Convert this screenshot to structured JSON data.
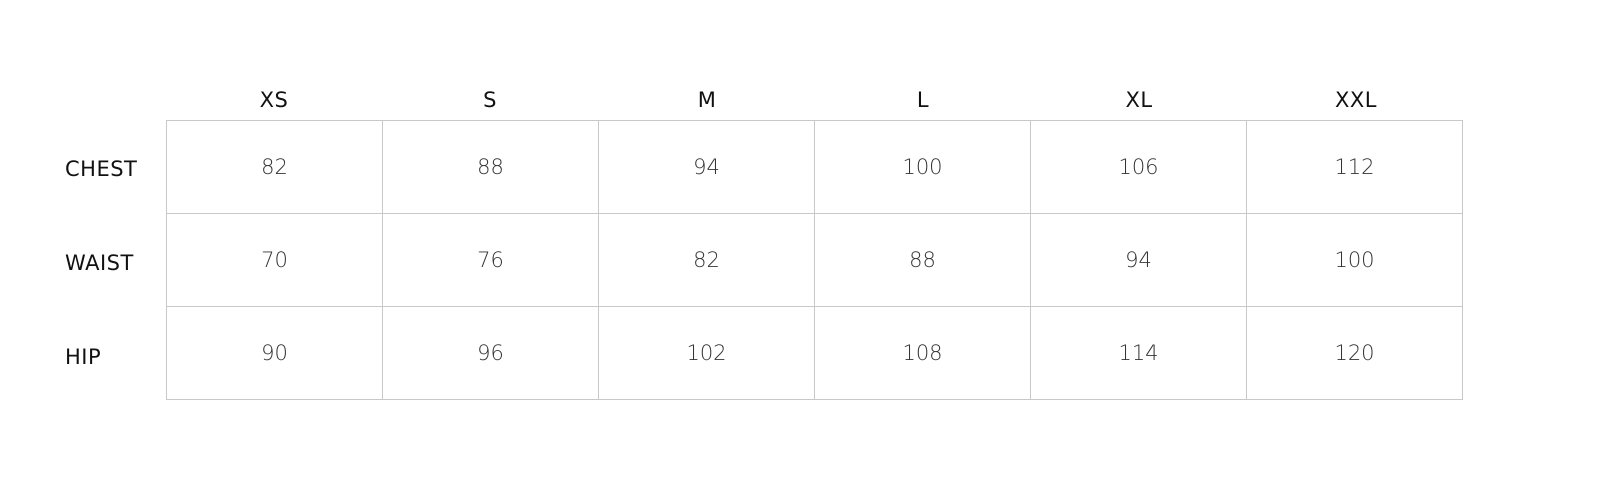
{
  "sizes": [
    "XS",
    "S",
    "M",
    "L",
    "XL",
    "XXL"
  ],
  "rows": [
    {
      "label": "CHEST",
      "values": [
        "82",
        "88",
        "94",
        "100",
        "106",
        "112"
      ]
    },
    {
      "label": "WAIST",
      "values": [
        "70",
        "76",
        "82",
        "88",
        "94",
        "100"
      ]
    },
    {
      "label": "HIP",
      "values": [
        "90",
        "96",
        "102",
        "108",
        "114",
        "120"
      ]
    }
  ]
}
